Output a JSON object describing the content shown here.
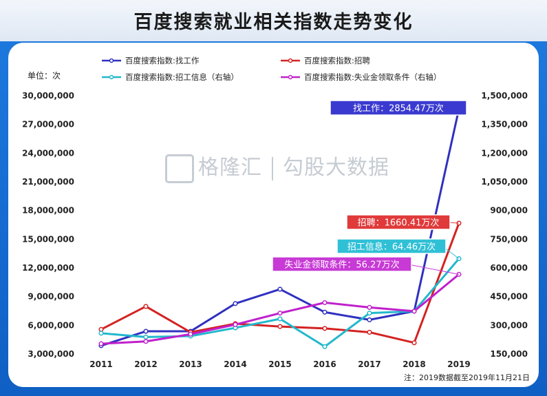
{
  "title": "百度搜索就业相关指数走势变化",
  "unit_label": "单位：次",
  "note": "注：2019数据截至2019年11月21日",
  "watermark": {
    "brand": "格隆汇",
    "text": "勾股大数据"
  },
  "colors": {
    "find_job": "#3030c0",
    "recruit": "#d42222",
    "recruit_info": "#22b8cc",
    "unemploy": "#c020cc"
  },
  "chart_data": {
    "type": "line",
    "x": [
      "2011",
      "2012",
      "2013",
      "2014",
      "2015",
      "2016",
      "2017",
      "2018",
      "2019"
    ],
    "left_ticks": [
      "30,000,000",
      "27,000,000",
      "24,000,000",
      "21,000,000",
      "18,000,000",
      "15,000,000",
      "12,000,000",
      "9,000,000",
      "6,000,000",
      "3,000,000"
    ],
    "right_ticks": [
      "1,500,000",
      "1,350,000",
      "1,200,000",
      "1,050,000",
      "900,000",
      "750,000",
      "600,000",
      "450,000",
      "300,000",
      "150,000"
    ],
    "left_ylim": [
      3000000,
      30000000
    ],
    "right_ylim": [
      150000,
      1500000
    ],
    "series": [
      {
        "name": "百度搜索指数:找工作",
        "axis": "left",
        "color": "#3030c0",
        "values": [
          3800000,
          5300000,
          5300000,
          8200000,
          9700000,
          7300000,
          6500000,
          7400000,
          28544700
        ],
        "callout": "找工作：2854.47万次"
      },
      {
        "name": "百度搜索指数:招聘",
        "axis": "left",
        "color": "#d42222",
        "values": [
          5500000,
          7900000,
          5200000,
          6100000,
          5800000,
          5600000,
          5200000,
          4100000,
          16604100
        ],
        "callout": "招聘：1660.41万次"
      },
      {
        "name": "百度搜索指数:招工信息（右轴）",
        "axis": "right",
        "color": "#22b8cc",
        "values": [
          255000,
          235000,
          240000,
          283000,
          330000,
          185000,
          360000,
          370000,
          644600
        ],
        "callout": "招工信息：64.46万次"
      },
      {
        "name": "百度搜索指数:失业金领取条件（右轴）",
        "axis": "right",
        "color": "#c020cc",
        "values": [
          200000,
          212000,
          250000,
          300000,
          360000,
          415000,
          390000,
          370000,
          562700
        ],
        "callout": "失业金领取条件：56.27万次"
      }
    ]
  }
}
